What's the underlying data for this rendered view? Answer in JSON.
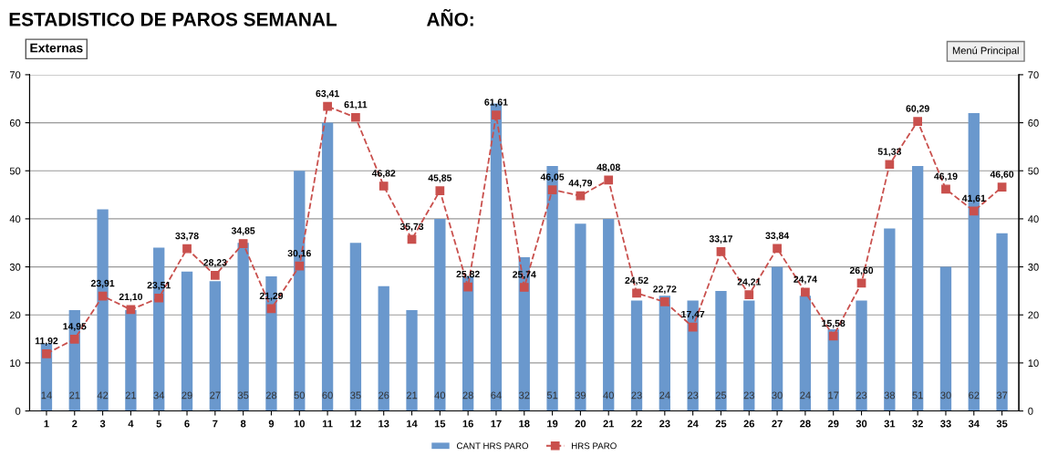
{
  "chart_data": {
    "type": "bar",
    "title": "ESTADISTICO DE PAROS SEMANAL",
    "annotations": [
      "AÑO:",
      "Externas",
      "Menú Principal"
    ],
    "categories": [
      "1",
      "2",
      "3",
      "4",
      "5",
      "6",
      "7",
      "8",
      "9",
      "10",
      "11",
      "12",
      "13",
      "14",
      "15",
      "16",
      "17",
      "18",
      "19",
      "20",
      "21",
      "22",
      "23",
      "24",
      "25",
      "26",
      "27",
      "28",
      "29",
      "30",
      "31",
      "32",
      "33",
      "34",
      "35"
    ],
    "series": [
      {
        "name": "CANT HRS PARO",
        "color": "#6a98cd",
        "values": [
          14,
          21,
          42,
          21,
          34,
          29,
          27,
          35,
          28,
          50,
          60,
          35,
          26,
          21,
          40,
          28,
          64,
          32,
          51,
          39,
          40,
          23,
          24,
          23,
          25,
          23,
          30,
          24,
          17,
          23,
          38,
          51,
          30,
          62,
          37
        ],
        "value_labels": [
          "14",
          "21",
          "42",
          "21",
          "34",
          "29",
          "27",
          "35",
          "28",
          "50",
          "60",
          "35",
          "26",
          "21",
          "40",
          "28",
          "64",
          "32",
          "51",
          "39",
          "40",
          "23",
          "24",
          "23",
          "25",
          "23",
          "30",
          "24",
          "17",
          "23",
          "38",
          "51",
          "30",
          "62",
          "37"
        ]
      },
      {
        "name": "HRS PARO",
        "type": "line",
        "color": "#c9504d",
        "marker": "square",
        "line_style": "dashed",
        "values": [
          11.92,
          14.95,
          23.91,
          21.1,
          23.51,
          33.78,
          28.23,
          34.85,
          21.29,
          30.16,
          63.41,
          61.11,
          46.82,
          35.73,
          45.85,
          25.82,
          61.61,
          25.74,
          46.05,
          44.79,
          48.08,
          24.52,
          22.72,
          17.47,
          33.17,
          24.21,
          33.84,
          24.74,
          15.58,
          26.6,
          51.33,
          60.29,
          46.19,
          41.61,
          46.6
        ],
        "value_labels": [
          "11,92",
          "14,95",
          "23,91",
          "21,10",
          "23,51",
          "33,78",
          "28,23",
          "34,85",
          "21,29",
          "30,16",
          "63,41",
          "61,11",
          "46,82",
          "35,73",
          "45,85",
          "25,82",
          "61,61",
          "25,74",
          "46,05",
          "44,79",
          "48,08",
          "24,52",
          "22,72",
          "17,47",
          "33,17",
          "24,21",
          "33,84",
          "24,74",
          "15,58",
          "26,60",
          "51,33",
          "60,29",
          "46,19",
          "41,61",
          "46,60"
        ]
      }
    ],
    "ylim": [
      0,
      70
    ],
    "yticks": [
      0,
      10,
      20,
      30,
      40,
      50,
      60,
      70
    ],
    "y2lim": [
      0,
      70
    ],
    "y2ticks": [
      0,
      10,
      20,
      30,
      40,
      50,
      60,
      70
    ],
    "grid": "y",
    "legend": "bottom"
  }
}
